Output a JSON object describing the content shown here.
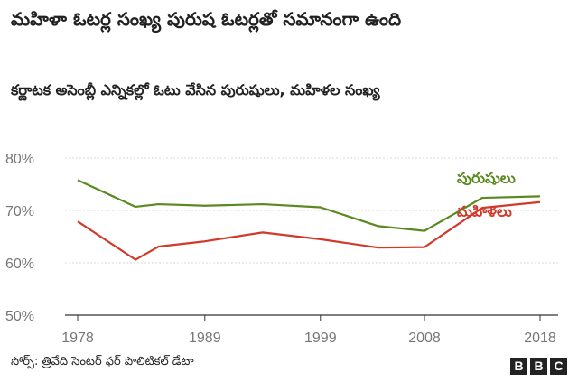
{
  "title": "మహిళా ఓటర్ల సంఖ్య పురుష ఓటర్లతో సమానంగా ఉంది",
  "subtitle": "కర్ణాటక అసెంబ్లీ ఎన్నికల్లో ఓటు వేసిన పురుషులు, మహిళల సంఖ్య",
  "source": "సోర్స్: త్రివేది సెంటర్ ఫర్ పొలిటికల్ డేటా",
  "logo": [
    "B",
    "B",
    "C"
  ],
  "colors": {
    "men": "#5a8a1f",
    "women": "#d13a2a",
    "grid": "#d9d9d9",
    "axis": "#333333",
    "tick_text": "#777777"
  },
  "chart_data": {
    "type": "line",
    "title": "మహిళా ఓటర్ల సంఖ్య పురుష ఓటర్లతో సమానంగా ఉంది",
    "subtitle": "కర్ణాటక అసెంబ్లీ ఎన్నికల్లో ఓటు వేసిన పురుషులు, మహిళల సంఖ్య",
    "x": [
      1978,
      1983,
      1985,
      1989,
      1994,
      1999,
      2004,
      2008,
      2013,
      2018
    ],
    "x_ticks": [
      1978,
      1989,
      1999,
      2008,
      2018
    ],
    "y_ticks": [
      50,
      60,
      70,
      80
    ],
    "y_tick_labels": [
      "50%",
      "60%",
      "70%",
      "80%"
    ],
    "xlim": [
      1978,
      2018
    ],
    "ylim": [
      50,
      80
    ],
    "grid": true,
    "legend": "inline-right",
    "series": [
      {
        "name": "పురుషులు",
        "key": "men",
        "values": [
          75.8,
          70.7,
          71.2,
          70.9,
          71.2,
          70.6,
          67.0,
          66.1,
          72.4,
          72.7
        ]
      },
      {
        "name": "మహిళలు",
        "key": "women",
        "values": [
          67.9,
          60.6,
          63.1,
          64.1,
          65.8,
          64.5,
          62.9,
          63.0,
          70.5,
          71.6
        ]
      }
    ]
  }
}
